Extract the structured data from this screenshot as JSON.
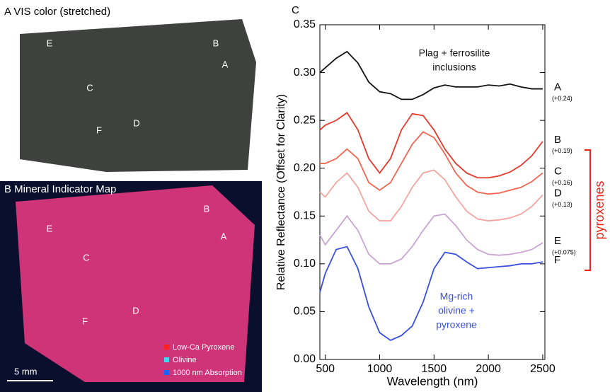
{
  "panels": {
    "a": {
      "title": "A  VIS color (stretched)",
      "points": [
        "E",
        "B",
        "A",
        "C",
        "F",
        "D"
      ]
    },
    "b": {
      "title": "B  Mineral Indicator Map",
      "points": [
        "E",
        "B",
        "A",
        "C",
        "F",
        "D"
      ],
      "legend": [
        "Low-Ca Pyroxene",
        "Olivine",
        "1000 nm Absorption"
      ],
      "legend_colors": [
        "#ff2020",
        "#40d8f0",
        "#2060ff"
      ],
      "scale": "5 mm"
    }
  },
  "chart_data": {
    "type": "line",
    "panel_label": "C",
    "xlabel": "Wavelength (nm)",
    "ylabel": "Relative Reflectance (Offset for Clarity)",
    "x": [
      450,
      500,
      600,
      700,
      800,
      900,
      1000,
      1100,
      1200,
      1300,
      1400,
      1500,
      1600,
      1700,
      1800,
      1900,
      2000,
      2100,
      2200,
      2300,
      2400,
      2500
    ],
    "xlim": [
      450,
      2520
    ],
    "ylim": [
      0,
      0.35
    ],
    "xticks": [
      500,
      1000,
      1500,
      2000,
      2500
    ],
    "yticks": [
      {
        "value": 0,
        "label": "0.00"
      },
      {
        "value": 0.05,
        "label": "0.05"
      },
      {
        "value": 0.1,
        "label": "0.10"
      },
      {
        "value": 0.15,
        "label": "0.15"
      },
      {
        "value": 0.2,
        "label": "0.20"
      },
      {
        "value": 0.25,
        "label": "0.25"
      },
      {
        "value": 0.3,
        "label": "0.30"
      },
      {
        "value": 0.35,
        "label": "0.35"
      }
    ],
    "series": [
      {
        "name": "A",
        "offset": "(+0.24)",
        "color": "#111111",
        "values": [
          0.3,
          0.305,
          0.315,
          0.322,
          0.31,
          0.29,
          0.28,
          0.278,
          0.272,
          0.272,
          0.277,
          0.284,
          0.287,
          0.285,
          0.285,
          0.285,
          0.287,
          0.286,
          0.288,
          0.285,
          0.283,
          0.283
        ]
      },
      {
        "name": "B",
        "offset": "(+0.19)",
        "color": "#e8382a",
        "values": [
          0.24,
          0.245,
          0.25,
          0.258,
          0.24,
          0.21,
          0.195,
          0.21,
          0.24,
          0.257,
          0.255,
          0.24,
          0.22,
          0.205,
          0.195,
          0.19,
          0.19,
          0.192,
          0.196,
          0.203,
          0.213,
          0.228
        ]
      },
      {
        "name": "C",
        "offset": "(+0.16)",
        "color": "#f06650",
        "values": [
          0.205,
          0.205,
          0.21,
          0.22,
          0.21,
          0.185,
          0.177,
          0.185,
          0.205,
          0.225,
          0.238,
          0.232,
          0.215,
          0.195,
          0.182,
          0.175,
          0.173,
          0.174,
          0.177,
          0.18,
          0.186,
          0.195
        ]
      },
      {
        "name": "D",
        "offset": "(+0.13)",
        "color": "#f5a5a0",
        "values": [
          0.175,
          0.17,
          0.185,
          0.195,
          0.18,
          0.155,
          0.145,
          0.145,
          0.16,
          0.18,
          0.195,
          0.198,
          0.188,
          0.17,
          0.155,
          0.147,
          0.145,
          0.146,
          0.148,
          0.152,
          0.16,
          0.172
        ]
      },
      {
        "name": "E",
        "offset": "(+0.075)",
        "color": "#c9a5d4",
        "values": [
          0.13,
          0.12,
          0.135,
          0.15,
          0.135,
          0.11,
          0.1,
          0.1,
          0.105,
          0.118,
          0.135,
          0.15,
          0.152,
          0.14,
          0.125,
          0.115,
          0.11,
          0.109,
          0.11,
          0.112,
          0.115,
          0.122
        ]
      },
      {
        "name": "F",
        "color": "#3a4fe0",
        "values": [
          0.07,
          0.09,
          0.115,
          0.118,
          0.095,
          0.055,
          0.028,
          0.02,
          0.025,
          0.035,
          0.06,
          0.095,
          0.112,
          0.11,
          0.102,
          0.095,
          0.096,
          0.097,
          0.098,
          0.1,
          0.1,
          0.102
        ]
      }
    ],
    "annotations": [
      {
        "lines": [
          "Plag + ferrosilite",
          "inclusions"
        ],
        "color": "#111111"
      },
      {
        "lines": [
          "Mg-rich",
          "olivine +",
          "pyroxene"
        ],
        "color": "#3a4fe0"
      }
    ],
    "bracket_label": "pyroxenes",
    "bracket_color": "#e8261a"
  }
}
